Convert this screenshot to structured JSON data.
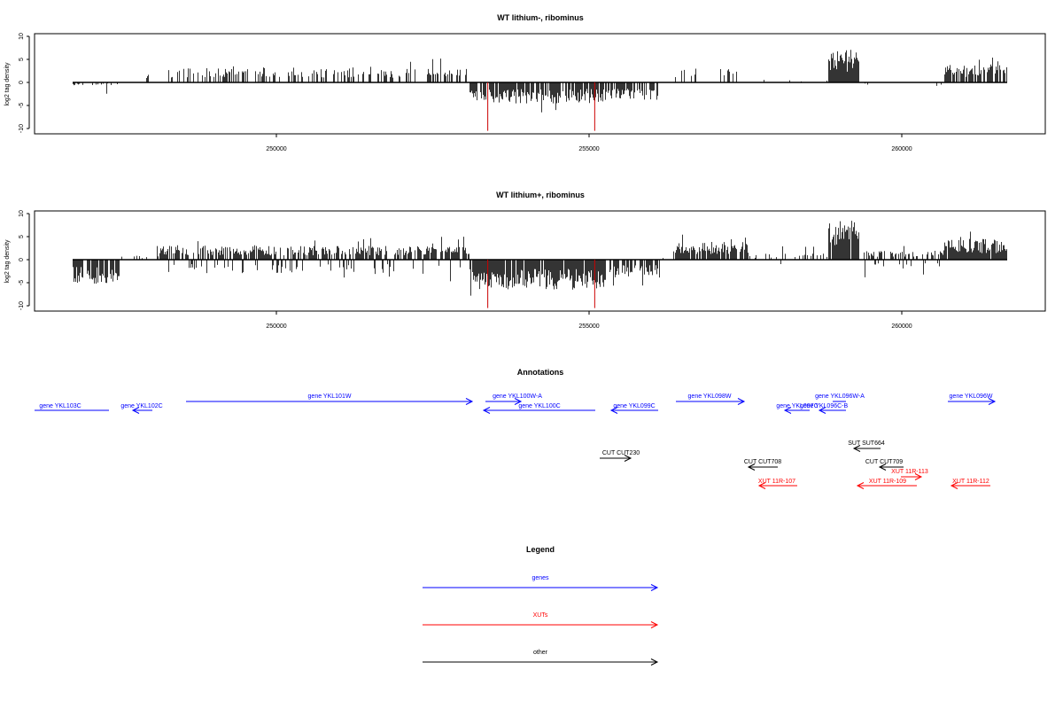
{
  "chart_data": [
    {
      "type": "bar",
      "title": "WT lithium-, ribominus",
      "xlabel": "",
      "ylabel": "log2 tag density",
      "ylim": [
        -11,
        10
      ],
      "xlim": [
        246100,
        261700
      ],
      "y_ticks": [
        "-10",
        "-5",
        "0",
        "5",
        "10"
      ],
      "x_ticks": [
        "250000",
        "255000",
        "260000"
      ],
      "data_range": [
        246200,
        261700
      ],
      "markers": [
        253380,
        255090
      ],
      "grid": false
    },
    {
      "type": "bar",
      "title": "WT lithium+, ribominus",
      "xlabel": "",
      "ylabel": "log2 tag density",
      "ylim": [
        -11,
        10
      ],
      "xlim": [
        246100,
        261700
      ],
      "y_ticks": [
        "-10",
        "-5",
        "0",
        "5",
        "10"
      ],
      "x_ticks": [
        "250000",
        "255000",
        "260000"
      ],
      "data_range": [
        246200,
        261700
      ],
      "markers": [
        253380,
        255090
      ],
      "grid": false
    }
  ],
  "annotations": {
    "title": "Annotations",
    "features": [
      {
        "label": "gene YKL103C",
        "color": "#0000ff"
      },
      {
        "label": "gene YKL102C",
        "color": "#0000ff"
      },
      {
        "label": "gene YKL101W",
        "color": "#0000ff"
      },
      {
        "label": "gene YKL100W-A",
        "color": "#0000ff"
      },
      {
        "label": "gene YKL100C",
        "color": "#0000ff"
      },
      {
        "label": "gene YKL099C",
        "color": "#0000ff"
      },
      {
        "label": "gene YKL098W",
        "color": "#0000ff"
      },
      {
        "label": "gene YKL097C",
        "color": "#0000ff"
      },
      {
        "label": "gene YKL096C-B",
        "color": "#0000ff"
      },
      {
        "label": "gene YKL096W-A",
        "color": "#0000ff"
      },
      {
        "label": "gene YKL096W",
        "color": "#0000ff"
      },
      {
        "label": "CUT CUT230",
        "color": "#000000"
      },
      {
        "label": "SUT SUT664",
        "color": "#000000"
      },
      {
        "label": "CUT CUT708",
        "color": "#000000"
      },
      {
        "label": "CUT CUT709",
        "color": "#000000"
      },
      {
        "label": "XUT 11R-113",
        "color": "#ff0000"
      },
      {
        "label": "XUT 11R-107",
        "color": "#ff0000"
      },
      {
        "label": "XUT 11R-109",
        "color": "#ff0000"
      },
      {
        "label": "XUT 11R-112",
        "color": "#ff0000"
      }
    ]
  },
  "legend": {
    "title": "Legend",
    "items": [
      {
        "label": "genes",
        "color": "#0000ff"
      },
      {
        "label": "XUTs",
        "color": "#ff0000"
      },
      {
        "label": "other",
        "color": "#000000"
      }
    ]
  },
  "colors": {
    "bars": "#000000",
    "marker": "#cc0000",
    "axis": "#000000"
  }
}
